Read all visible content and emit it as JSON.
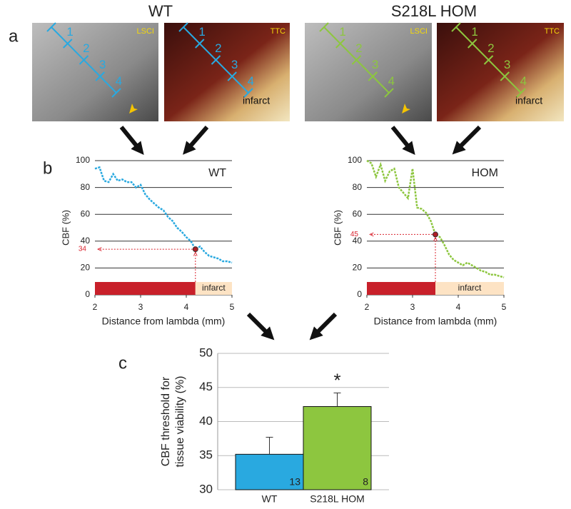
{
  "panel_labels": [
    "a",
    "b",
    "c"
  ],
  "groups": [
    "WT",
    "S218L HOM"
  ],
  "images": [
    {
      "label": "LSCI",
      "segments": [
        "1",
        "2",
        "3",
        "4"
      ]
    },
    {
      "label": "TTC",
      "segments": [
        "1",
        "2",
        "3",
        "4"
      ],
      "note": "infarct"
    },
    {
      "label": "LSCI",
      "segments": [
        "1",
        "2",
        "3",
        "4"
      ]
    },
    {
      "label": "TTC",
      "segments": [
        "1",
        "2",
        "3",
        "4"
      ],
      "note": "infarct"
    }
  ],
  "chart_data": [
    {
      "type": "line",
      "xlabel": "Distance from lambda (mm)",
      "ylabel": "CBF (%)",
      "x": [
        2.0,
        2.1,
        2.2,
        2.3,
        2.4,
        2.5,
        2.6,
        2.7,
        2.8,
        2.9,
        3.0,
        3.1,
        3.2,
        3.3,
        3.4,
        3.5,
        3.6,
        3.7,
        3.8,
        3.9,
        4.0,
        4.1,
        4.2,
        4.3,
        4.4,
        4.5,
        4.6,
        4.7,
        4.8,
        4.9,
        5.0
      ],
      "series": [
        {
          "name": "WT",
          "color": "#29a9e0",
          "values": [
            94,
            95,
            85,
            84,
            90,
            85,
            86,
            84,
            84,
            80,
            82,
            75,
            71,
            68,
            65,
            63,
            58,
            55,
            50,
            47,
            43,
            40,
            34,
            36,
            32,
            29,
            28,
            27,
            25,
            25,
            24
          ]
        }
      ],
      "threshold": {
        "x": 4.2,
        "y": 34,
        "color": "#d9232e"
      },
      "region_label": "infarct",
      "xlim": [
        2,
        5
      ],
      "xticks": [
        2,
        3,
        4,
        5
      ],
      "ylim": [
        0,
        100
      ],
      "yticks": [
        0,
        20,
        40,
        60,
        80,
        100
      ],
      "grid": true
    },
    {
      "type": "line",
      "xlabel": "Distance from lambda (mm)",
      "ylabel": "CBF (%)",
      "x": [
        2.0,
        2.1,
        2.2,
        2.3,
        2.4,
        2.5,
        2.6,
        2.7,
        2.8,
        2.9,
        3.0,
        3.1,
        3.2,
        3.3,
        3.4,
        3.5,
        3.6,
        3.7,
        3.8,
        3.9,
        4.0,
        4.1,
        4.2,
        4.3,
        4.4,
        4.5,
        4.6,
        4.7,
        4.8,
        4.9,
        5.0
      ],
      "series": [
        {
          "name": "HOM",
          "color": "#8dc63f",
          "values": [
            100,
            98,
            88,
            97,
            85,
            92,
            94,
            80,
            76,
            72,
            94,
            65,
            64,
            61,
            55,
            45,
            43,
            37,
            30,
            26,
            24,
            22,
            24,
            22,
            20,
            18,
            17,
            15,
            15,
            14,
            13
          ]
        }
      ],
      "threshold": {
        "x": 3.5,
        "y": 45,
        "color": "#d9232e"
      },
      "region_label": "infarct",
      "xlim": [
        2,
        5
      ],
      "xticks": [
        2,
        3,
        4,
        5
      ],
      "ylim": [
        0,
        100
      ],
      "yticks": [
        0,
        20,
        40,
        60,
        80,
        100
      ],
      "grid": true
    },
    {
      "type": "bar",
      "ylabel": [
        "CBF threshold for",
        "tissue viability (%)"
      ],
      "categories": [
        "WT",
        "S218L HOM"
      ],
      "values": [
        35.2,
        42.2
      ],
      "errors": [
        2.5,
        2.0
      ],
      "colors": [
        "#29a9e0",
        "#8dc63f"
      ],
      "n": [
        13,
        8
      ],
      "annotation": "*",
      "ylim": [
        30,
        50
      ],
      "yticks": [
        30,
        35,
        40,
        45,
        50
      ],
      "grid": true
    }
  ]
}
